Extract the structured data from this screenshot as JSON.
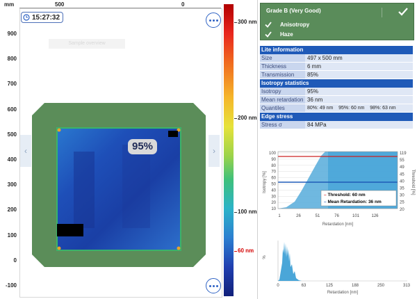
{
  "top_axis": {
    "unit": "mm",
    "ticks": [
      {
        "label": "500"
      },
      {
        "label": "0"
      }
    ]
  },
  "left_axis": {
    "ticks": [
      "900",
      "800",
      "700",
      "600",
      "500",
      "400",
      "300",
      "200",
      "100",
      "0",
      "-100"
    ]
  },
  "viewer": {
    "time": "15:27:32",
    "percent_badge": "95%",
    "hint": "Sample overview"
  },
  "colorbar": {
    "labels": [
      {
        "text": "300 nm",
        "color": "#222222"
      },
      {
        "text": "200 nm",
        "color": "#222222"
      },
      {
        "text": "100 nm",
        "color": "#222222"
      },
      {
        "text": "60 nm",
        "color": "#d40000"
      }
    ]
  },
  "grade": {
    "title": "Grade B (Very Good)",
    "checks": [
      "Anisotropy",
      "Haze"
    ],
    "color": "#5a8c5a"
  },
  "lite_info": {
    "header": "Lite information",
    "rows": [
      {
        "k": "Size",
        "v": "497 x 500 mm"
      },
      {
        "k": "Thickness",
        "v": "6 mm"
      },
      {
        "k": "Transmission",
        "v": "85%"
      }
    ]
  },
  "isotropy": {
    "header": "Isotropy statistics",
    "rows": [
      {
        "k": "Isotropy",
        "v": "95%"
      },
      {
        "k": "Mean retardation",
        "v": "36 nm"
      },
      {
        "k": "Quantiles",
        "v": "80%: 49 nm    95%: 60 nm    98%: 63 nm"
      }
    ]
  },
  "edge": {
    "header": "Edge stress",
    "rows": [
      {
        "k": "Stress σ",
        "v": "84 MPa"
      }
    ]
  },
  "chart1": {
    "ylabel": "Isotropy [%]",
    "ylabel2": "Threshold [%]",
    "xlabel": "Retardation [nm]",
    "y_ticks": [
      "100",
      "90",
      "80",
      "70",
      "60",
      "50",
      "40",
      "30",
      "20",
      "10"
    ],
    "y2_ticks": [
      "119",
      "55",
      "49",
      "45",
      "40",
      "35",
      "30",
      "25",
      "20"
    ],
    "x_ticks": [
      "1",
      "26",
      "51",
      "76",
      "101",
      "126"
    ],
    "legend": [
      {
        "label": "Threshold: 60 nm",
        "color": "#cc2020"
      },
      {
        "label": "Mean Retardation: 36 nm",
        "color": "#1f5ab8"
      }
    ]
  },
  "chart2": {
    "ylabel": "%",
    "xlabel": "Retardation [nm]",
    "x_ticks": [
      "0",
      "63",
      "125",
      "188",
      "250",
      "313"
    ]
  }
}
